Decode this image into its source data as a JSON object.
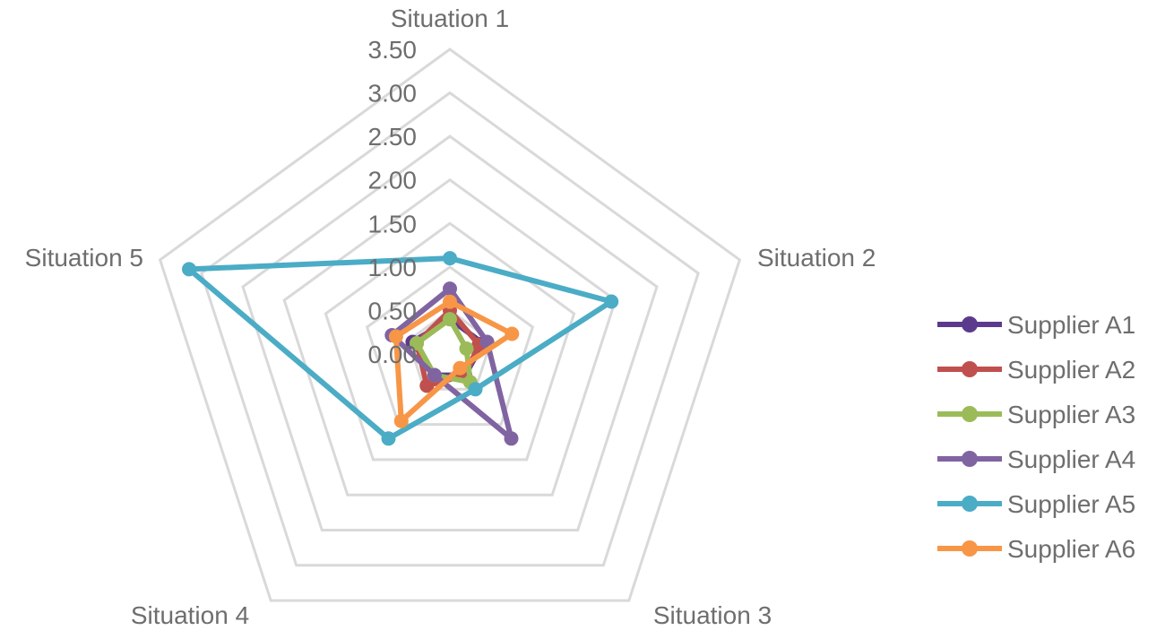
{
  "chart_data": {
    "type": "radar",
    "title": "",
    "axes": [
      "Situation 1",
      "Situation 2",
      "Situation 3",
      "Situation 4",
      "Situation 5"
    ],
    "rlim": [
      0,
      3.5
    ],
    "ticks": [
      "0.00",
      "0.50",
      "1.00",
      "1.50",
      "2.00",
      "2.50",
      "3.00",
      "3.50"
    ],
    "grid": true,
    "legend_position": "right",
    "series": [
      {
        "name": "Supplier A1",
        "color": "#5b3a8e",
        "values": [
          0.4,
          0.4,
          0.3,
          0.3,
          0.45
        ]
      },
      {
        "name": "Supplier A2",
        "color": "#c0504d",
        "values": [
          0.5,
          0.35,
          0.3,
          0.45,
          0.4
        ]
      },
      {
        "name": "Supplier A3",
        "color": "#9bbb59",
        "values": [
          0.4,
          0.2,
          0.4,
          0.3,
          0.4
        ]
      },
      {
        "name": "Supplier A4",
        "color": "#8064a2",
        "values": [
          0.75,
          0.45,
          1.2,
          0.3,
          0.7
        ]
      },
      {
        "name": "Supplier A5",
        "color": "#4bacc6",
        "values": [
          1.1,
          1.95,
          0.5,
          1.2,
          3.15
        ]
      },
      {
        "name": "Supplier A6",
        "color": "#f79646",
        "values": [
          0.6,
          0.75,
          0.2,
          0.95,
          0.65
        ]
      }
    ]
  }
}
